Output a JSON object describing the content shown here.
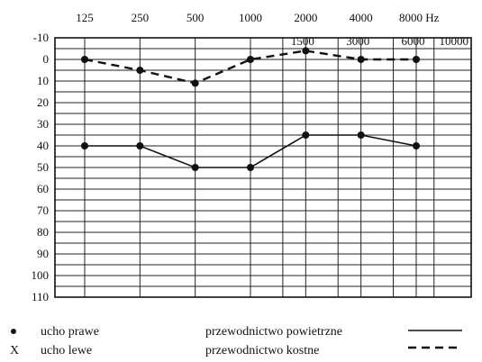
{
  "chart_data": {
    "type": "line",
    "x_top_labels": [
      "125",
      "250",
      "500",
      "1000",
      "2000",
      "4000",
      "8000 Hz"
    ],
    "x_top_values": [
      125,
      250,
      500,
      1000,
      2000,
      4000,
      8000
    ],
    "x_mid_labels": [
      "1500",
      "3000",
      "6000",
      "10000"
    ],
    "x_mid_values": [
      1500,
      3000,
      6000,
      10000
    ],
    "y_ticks": [
      "-10",
      "0",
      "10",
      "20",
      "30",
      "40",
      "50",
      "60",
      "70",
      "80",
      "90",
      "100",
      "110"
    ],
    "ylim": [
      -10,
      110
    ],
    "y_inverted": true,
    "x_scale": "log",
    "grid": true,
    "series": [
      {
        "id": "air",
        "style": "solid",
        "x": [
          125,
          250,
          500,
          1000,
          2000,
          4000,
          8000
        ],
        "y": [
          40,
          40,
          50,
          50,
          35,
          35,
          40
        ]
      },
      {
        "id": "bone",
        "style": "dashed",
        "x": [
          125,
          250,
          500,
          1000,
          2000,
          4000,
          8000
        ],
        "y": [
          0,
          5,
          11,
          0,
          -4,
          0,
          0
        ]
      }
    ],
    "legend": {
      "marker_dot": "•",
      "right_ear": "ucho prawe",
      "marker_x": "X",
      "left_ear": "ucho lewe",
      "air": "przewodnictwo powietrzne",
      "bone": "przewodnictwo kostne"
    }
  }
}
